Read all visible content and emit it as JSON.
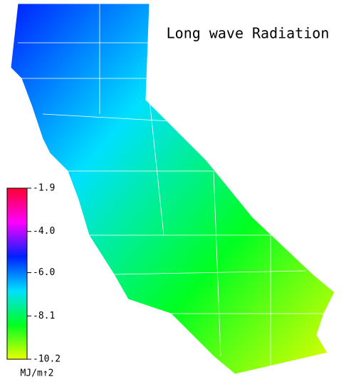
{
  "title": "Long wave Radiation",
  "colorbar": {
    "lim": [
      -10.2,
      -1.9
    ],
    "ticks": [
      -1.9,
      {
        "value": -4,
        "label": "-4.0"
      },
      {
        "value": -6,
        "label": "-6.0"
      },
      -8.1,
      -10.2
    ],
    "colors": [
      "#ff0030",
      "#ff00ff",
      "#0020ff",
      "#00e0ff",
      "#00ff20",
      "#e8ff00"
    ],
    "unit": "MJ/m↑2"
  }
}
